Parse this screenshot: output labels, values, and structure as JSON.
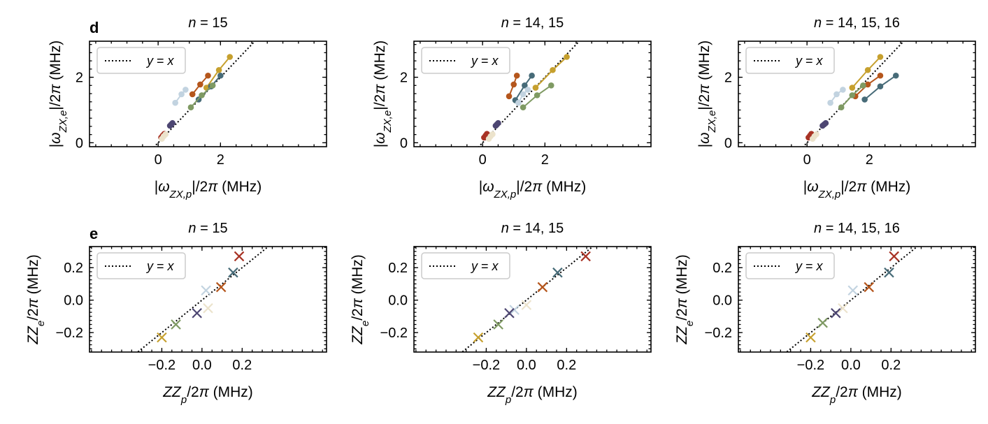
{
  "figure": {
    "panel_labels": [
      "d",
      "e"
    ]
  },
  "legend_label": "y = x",
  "colors": {
    "gold": "#c6a02e",
    "orange": "#b5561c",
    "slate": "#476b78",
    "green": "#7f9a63",
    "lightblue": "#c2d3e0",
    "purple": "#4d4672",
    "red": "#a83325",
    "cream": "#ece3cc"
  },
  "chart_data": [
    {
      "id": "d1",
      "type": "line",
      "panel_label": "d",
      "title": "n = 15",
      "xlabel": "|ω_ZX,p|/2π (MHz)",
      "ylabel": "|ω_ZX,e|/2π (MHz)",
      "xlim": [
        -2.2,
        5.4
      ],
      "ylim": [
        -0.12,
        3.1
      ],
      "xticks": [
        0,
        2
      ],
      "yticks": [
        0,
        2
      ],
      "reference_line": [
        [
          -0.3,
          -0.3
        ],
        [
          3.1,
          3.1
        ]
      ],
      "series": [
        {
          "color": "gold",
          "points": [
            [
              1.55,
              1.68
            ],
            [
              1.95,
              2.22
            ],
            [
              2.3,
              2.62
            ]
          ]
        },
        {
          "color": "orange",
          "points": [
            [
              1.1,
              1.48
            ],
            [
              1.35,
              1.78
            ],
            [
              1.6,
              2.05
            ]
          ]
        },
        {
          "color": "slate",
          "points": [
            [
              1.3,
              1.32
            ],
            [
              1.7,
              1.72
            ],
            [
              2.0,
              2.05
            ]
          ]
        },
        {
          "color": "green",
          "points": [
            [
              1.05,
              1.08
            ],
            [
              1.4,
              1.45
            ],
            [
              1.75,
              1.75
            ]
          ]
        },
        {
          "color": "lightblue",
          "points": [
            [
              0.55,
              1.22
            ],
            [
              0.75,
              1.48
            ],
            [
              0.88,
              1.62
            ]
          ]
        },
        {
          "color": "purple",
          "points": [
            [
              0.38,
              0.52
            ],
            [
              0.42,
              0.56
            ],
            [
              0.46,
              0.6
            ]
          ]
        },
        {
          "color": "red",
          "points": [
            [
              0.1,
              0.16
            ],
            [
              0.15,
              0.22
            ],
            [
              0.2,
              0.27
            ]
          ]
        },
        {
          "color": "cream",
          "points": [
            [
              0.12,
              0.12
            ],
            [
              0.18,
              0.2
            ],
            [
              0.24,
              0.26
            ]
          ]
        }
      ]
    },
    {
      "id": "d2",
      "type": "line",
      "title": "n = 14, 15",
      "xlabel": "|ω_ZX,p|/2π (MHz)",
      "ylabel": "|ω_ZX,e|/2π (MHz)",
      "xlim": [
        -2.2,
        5.4
      ],
      "ylim": [
        -0.12,
        3.1
      ],
      "xticks": [
        0,
        2
      ],
      "yticks": [
        0,
        2
      ],
      "reference_line": [
        [
          -0.3,
          -0.3
        ],
        [
          3.1,
          3.1
        ]
      ],
      "series": [
        {
          "color": "gold",
          "points": [
            [
              1.7,
              1.68
            ],
            [
              2.25,
              2.22
            ],
            [
              2.7,
              2.62
            ]
          ]
        },
        {
          "color": "orange",
          "points": [
            [
              0.85,
              1.42
            ],
            [
              1.0,
              1.78
            ],
            [
              1.1,
              2.05
            ]
          ]
        },
        {
          "color": "slate",
          "points": [
            [
              1.05,
              1.3
            ],
            [
              1.35,
              1.75
            ],
            [
              1.58,
              2.05
            ]
          ]
        },
        {
          "color": "green",
          "points": [
            [
              1.3,
              1.08
            ],
            [
              1.75,
              1.45
            ],
            [
              2.2,
              1.75
            ]
          ]
        },
        {
          "color": "lightblue",
          "points": [
            [
              1.15,
              1.22
            ],
            [
              1.3,
              1.48
            ],
            [
              1.45,
              1.62
            ]
          ]
        },
        {
          "color": "purple",
          "points": [
            [
              0.42,
              0.52
            ],
            [
              0.46,
              0.56
            ],
            [
              0.5,
              0.6
            ]
          ]
        },
        {
          "color": "red",
          "points": [
            [
              0.05,
              0.16
            ],
            [
              0.1,
              0.22
            ],
            [
              0.14,
              0.27
            ]
          ]
        },
        {
          "color": "cream",
          "points": [
            [
              0.2,
              0.12
            ],
            [
              0.26,
              0.2
            ],
            [
              0.32,
              0.26
            ]
          ]
        }
      ]
    },
    {
      "id": "d3",
      "type": "line",
      "title": "n = 14, 15, 16",
      "xlabel": "|ω_ZX,p|/2π (MHz)",
      "ylabel": "|ω_ZX,e|/2π (MHz)",
      "xlim": [
        -2.2,
        5.4
      ],
      "ylim": [
        -0.12,
        3.1
      ],
      "xticks": [
        0,
        2
      ],
      "yticks": [
        0,
        2
      ],
      "reference_line": [
        [
          -0.3,
          -0.3
        ],
        [
          3.1,
          3.1
        ]
      ],
      "series": [
        {
          "color": "gold",
          "points": [
            [
              1.45,
              1.68
            ],
            [
              1.95,
              2.22
            ],
            [
              2.35,
              2.62
            ]
          ]
        },
        {
          "color": "orange",
          "points": [
            [
              1.55,
              1.42
            ],
            [
              1.95,
              1.78
            ],
            [
              2.35,
              2.05
            ]
          ]
        },
        {
          "color": "slate",
          "points": [
            [
              1.85,
              1.32
            ],
            [
              2.35,
              1.72
            ],
            [
              2.85,
              2.05
            ]
          ]
        },
        {
          "color": "green",
          "points": [
            [
              1.1,
              1.08
            ],
            [
              1.45,
              1.45
            ],
            [
              1.8,
              1.75
            ]
          ]
        },
        {
          "color": "lightblue",
          "points": [
            [
              0.75,
              1.22
            ],
            [
              0.95,
              1.48
            ],
            [
              1.15,
              1.62
            ]
          ]
        },
        {
          "color": "purple",
          "points": [
            [
              0.5,
              0.52
            ],
            [
              0.55,
              0.56
            ],
            [
              0.6,
              0.6
            ]
          ]
        },
        {
          "color": "red",
          "points": [
            [
              0.05,
              0.16
            ],
            [
              0.1,
              0.22
            ],
            [
              0.14,
              0.27
            ]
          ]
        },
        {
          "color": "cream",
          "points": [
            [
              0.18,
              0.12
            ],
            [
              0.24,
              0.2
            ],
            [
              0.3,
              0.26
            ]
          ]
        }
      ]
    },
    {
      "id": "e1",
      "type": "scatter",
      "panel_label": "e",
      "title": "n = 15",
      "xlabel": "ZZ_p/2π (MHz)",
      "ylabel": "ZZ_e/2π (MHz)",
      "xlim": [
        -0.56,
        0.62
      ],
      "ylim": [
        -0.32,
        0.33
      ],
      "xticks": [
        -0.2,
        0.0,
        0.2
      ],
      "xtick_labels": [
        "−0.2",
        "0.0",
        "0.2"
      ],
      "yticks": [
        -0.2,
        0.0,
        0.2
      ],
      "ytick_labels": [
        "−0.2",
        "0.0",
        "0.2"
      ],
      "reference_line": [
        [
          -0.4,
          -0.4
        ],
        [
          0.4,
          0.4
        ]
      ],
      "points": [
        {
          "color": "red",
          "x": 0.185,
          "y": 0.27
        },
        {
          "color": "slate",
          "x": 0.155,
          "y": 0.17
        },
        {
          "color": "orange",
          "x": 0.095,
          "y": 0.08
        },
        {
          "color": "lightblue",
          "x": 0.02,
          "y": 0.06
        },
        {
          "color": "cream",
          "x": 0.03,
          "y": -0.05
        },
        {
          "color": "purple",
          "x": -0.025,
          "y": -0.08
        },
        {
          "color": "green",
          "x": -0.13,
          "y": -0.15
        },
        {
          "color": "gold",
          "x": -0.2,
          "y": -0.23
        }
      ]
    },
    {
      "id": "e2",
      "type": "scatter",
      "title": "n = 14, 15",
      "xlabel": "ZZ_p/2π (MHz)",
      "ylabel": "ZZ_e/2π (MHz)",
      "xlim": [
        -0.56,
        0.62
      ],
      "ylim": [
        -0.32,
        0.33
      ],
      "xticks": [
        -0.2,
        0.0,
        0.2
      ],
      "xtick_labels": [
        "−0.2",
        "0.0",
        "0.2"
      ],
      "yticks": [
        -0.2,
        0.0,
        0.2
      ],
      "ytick_labels": [
        "−0.2",
        "0.0",
        "0.2"
      ],
      "reference_line": [
        [
          -0.4,
          -0.4
        ],
        [
          0.4,
          0.4
        ]
      ],
      "points": [
        {
          "color": "red",
          "x": 0.295,
          "y": 0.27
        },
        {
          "color": "slate",
          "x": 0.155,
          "y": 0.17
        },
        {
          "color": "orange",
          "x": 0.08,
          "y": 0.08
        },
        {
          "color": "cream",
          "x": 0.0,
          "y": -0.03
        },
        {
          "color": "lightblue",
          "x": -0.06,
          "y": -0.06
        },
        {
          "color": "purple",
          "x": -0.085,
          "y": -0.08
        },
        {
          "color": "green",
          "x": -0.14,
          "y": -0.15
        },
        {
          "color": "gold",
          "x": -0.24,
          "y": -0.23
        }
      ]
    },
    {
      "id": "e3",
      "type": "scatter",
      "title": "n = 14, 15, 16",
      "xlabel": "ZZ_p/2π (MHz)",
      "ylabel": "ZZ_e/2π (MHz)",
      "xlim": [
        -0.56,
        0.62
      ],
      "ylim": [
        -0.32,
        0.33
      ],
      "xticks": [
        -0.2,
        0.0,
        0.2
      ],
      "xtick_labels": [
        "−0.2",
        "0.0",
        "0.2"
      ],
      "yticks": [
        -0.2,
        0.0,
        0.2
      ],
      "ytick_labels": [
        "−0.2",
        "0.0",
        "0.2"
      ],
      "reference_line": [
        [
          -0.4,
          -0.4
        ],
        [
          0.4,
          0.4
        ]
      ],
      "points": [
        {
          "color": "red",
          "x": 0.215,
          "y": 0.27
        },
        {
          "color": "slate",
          "x": 0.19,
          "y": 0.17
        },
        {
          "color": "orange",
          "x": 0.09,
          "y": 0.08
        },
        {
          "color": "lightblue",
          "x": 0.01,
          "y": 0.06
        },
        {
          "color": "cream",
          "x": -0.04,
          "y": -0.05
        },
        {
          "color": "purple",
          "x": -0.075,
          "y": -0.08
        },
        {
          "color": "green",
          "x": -0.14,
          "y": -0.14
        },
        {
          "color": "gold",
          "x": -0.2,
          "y": -0.23
        }
      ]
    }
  ]
}
